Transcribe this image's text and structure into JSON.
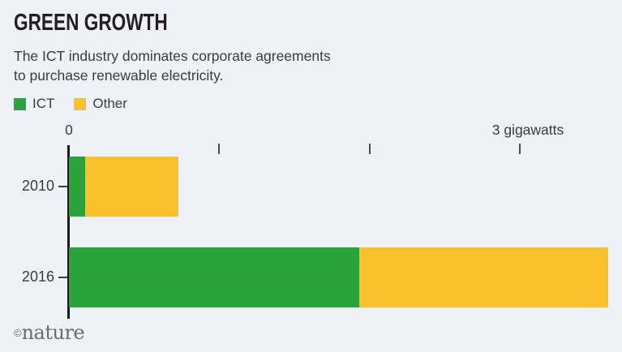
{
  "header": {
    "subtitle_line1": "The ICT industry dominates corporate agreements",
    "subtitle_line2": "to purchase renewable electricity."
  },
  "axis": {
    "zero_label": "0",
    "max_label": "3 gigawatts"
  },
  "credit": {
    "symbol": "©",
    "text": "nature"
  },
  "colors": {
    "background": "#eef1f8",
    "axis_line": "#1a1a1a",
    "tick": "#4d4d4d",
    "text": "#3b3b3b",
    "title": "#231f20",
    "ict_green": "#2aa43a",
    "other_yellow": "#fbc12d",
    "credit_gray": "#6b6b6b"
  },
  "chart_data": {
    "type": "bar",
    "orientation": "horizontal",
    "stacked": true,
    "title": "GREEN GROWTH",
    "subtitle": "The ICT industry dominates corporate agreements to purchase renewable electricity.",
    "unit": "gigawatts",
    "categories": [
      "2010",
      "2016"
    ],
    "series": [
      {
        "name": "ICT",
        "color": "#2aa43a",
        "values": [
          0.11,
          1.93
        ]
      },
      {
        "name": "Other",
        "color": "#fbc12d",
        "values": [
          0.62,
          1.66
        ]
      }
    ],
    "totals_gw": [
      0.73,
      3.59
    ],
    "x_ticks_gw": [
      1,
      2,
      3
    ],
    "xlim": [
      0,
      3.68
    ],
    "xlabel": "gigawatts",
    "grid": false,
    "legend_position": "top-left"
  }
}
